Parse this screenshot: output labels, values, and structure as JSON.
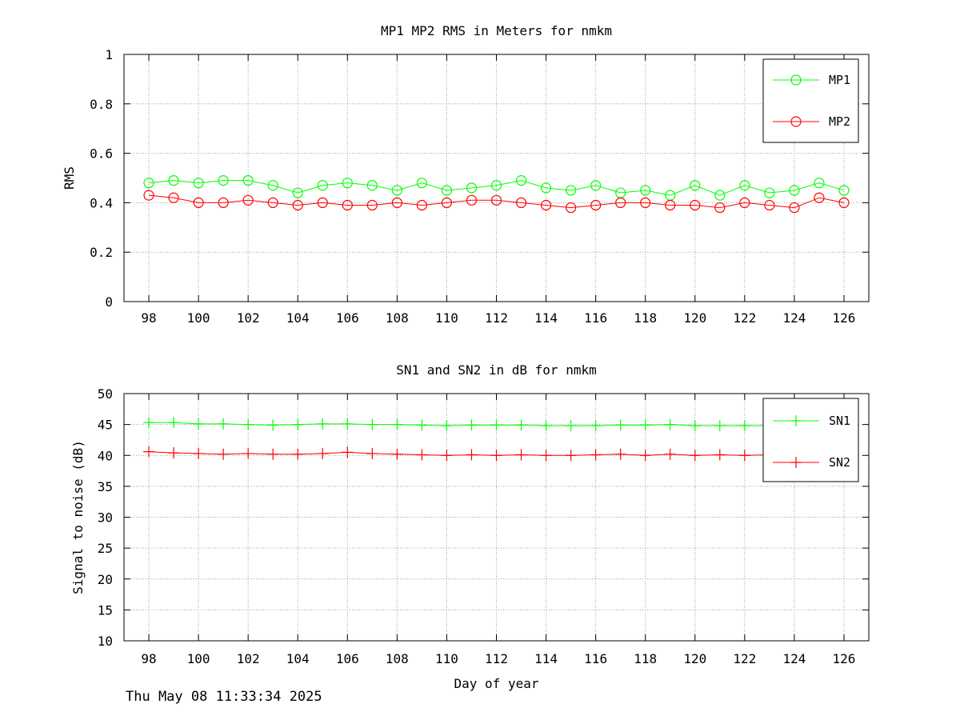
{
  "footer": {
    "timestamp": "Thu May 08 11:33:34 2025"
  },
  "chart_data": [
    {
      "type": "line",
      "title": "MP1 MP2 RMS in Meters for nmkm",
      "xlabel": "",
      "ylabel": "RMS",
      "x": [
        98,
        99,
        100,
        101,
        102,
        103,
        104,
        105,
        106,
        107,
        108,
        109,
        110,
        111,
        112,
        113,
        114,
        115,
        116,
        117,
        118,
        119,
        120,
        121,
        122,
        123,
        124,
        125,
        126
      ],
      "xlim": [
        97,
        127
      ],
      "ylim": [
        0,
        1
      ],
      "xticks": [
        98,
        100,
        102,
        104,
        106,
        108,
        110,
        112,
        114,
        116,
        118,
        120,
        122,
        124,
        126
      ],
      "xtick_labels": [
        "98",
        "100",
        "102",
        "104",
        "106",
        "108",
        "110",
        "112",
        "114",
        "116",
        "118",
        "120",
        "122",
        "124",
        "126"
      ],
      "yticks": [
        0,
        0.2,
        0.4,
        0.6,
        0.8,
        1
      ],
      "ytick_labels": [
        "0",
        "0.2",
        "0.4",
        "0.6",
        "0.8",
        "1"
      ],
      "grid": true,
      "legend_position": "top-right",
      "series": [
        {
          "name": "MP1",
          "color": "#00ff00",
          "marker": "circle",
          "values": [
            0.48,
            0.49,
            0.48,
            0.49,
            0.49,
            0.47,
            0.44,
            0.47,
            0.48,
            0.47,
            0.45,
            0.48,
            0.45,
            0.46,
            0.47,
            0.49,
            0.46,
            0.45,
            0.47,
            0.44,
            0.45,
            0.43,
            0.47,
            0.43,
            0.47,
            0.44,
            0.45,
            0.48,
            0.45
          ]
        },
        {
          "name": "MP2",
          "color": "#ff0000",
          "marker": "circle",
          "values": [
            0.43,
            0.42,
            0.4,
            0.4,
            0.41,
            0.4,
            0.39,
            0.4,
            0.39,
            0.39,
            0.4,
            0.39,
            0.4,
            0.41,
            0.41,
            0.4,
            0.39,
            0.38,
            0.39,
            0.4,
            0.4,
            0.39,
            0.39,
            0.38,
            0.4,
            0.39,
            0.38,
            0.42,
            0.4
          ]
        }
      ]
    },
    {
      "type": "line",
      "title": "SN1 and SN2 in dB for nmkm",
      "xlabel": "Day of year",
      "ylabel": "Signal to noise (dB)",
      "x": [
        98,
        99,
        100,
        101,
        102,
        103,
        104,
        105,
        106,
        107,
        108,
        109,
        110,
        111,
        112,
        113,
        114,
        115,
        116,
        117,
        118,
        119,
        120,
        121,
        122,
        123,
        124,
        125,
        126
      ],
      "xlim": [
        97,
        127
      ],
      "ylim": [
        10,
        50
      ],
      "xticks": [
        98,
        100,
        102,
        104,
        106,
        108,
        110,
        112,
        114,
        116,
        118,
        120,
        122,
        124,
        126
      ],
      "xtick_labels": [
        "98",
        "100",
        "102",
        "104",
        "106",
        "108",
        "110",
        "112",
        "114",
        "116",
        "118",
        "120",
        "122",
        "124",
        "126"
      ],
      "yticks": [
        10,
        15,
        20,
        25,
        30,
        35,
        40,
        45,
        50
      ],
      "ytick_labels": [
        "10",
        "15",
        "20",
        "25",
        "30",
        "35",
        "40",
        "45",
        "50"
      ],
      "grid": true,
      "legend_position": "top-right",
      "series": [
        {
          "name": "SN1",
          "color": "#00ff00",
          "marker": "plus",
          "values": [
            45.3,
            45.3,
            45.1,
            45.1,
            45.0,
            44.9,
            45.0,
            45.1,
            45.1,
            45.0,
            45.0,
            44.9,
            44.8,
            44.9,
            44.9,
            44.9,
            44.8,
            44.8,
            44.8,
            44.9,
            44.9,
            45.0,
            44.8,
            44.8,
            44.8,
            44.8,
            44.8,
            44.8,
            44.8
          ]
        },
        {
          "name": "SN2",
          "color": "#ff0000",
          "marker": "plus",
          "values": [
            40.6,
            40.4,
            40.3,
            40.2,
            40.3,
            40.2,
            40.2,
            40.3,
            40.5,
            40.3,
            40.2,
            40.1,
            40.0,
            40.1,
            40.0,
            40.1,
            40.0,
            40.0,
            40.1,
            40.2,
            40.0,
            40.2,
            40.0,
            40.1,
            40.0,
            40.1,
            40.2,
            40.2,
            40.0
          ]
        }
      ]
    }
  ]
}
